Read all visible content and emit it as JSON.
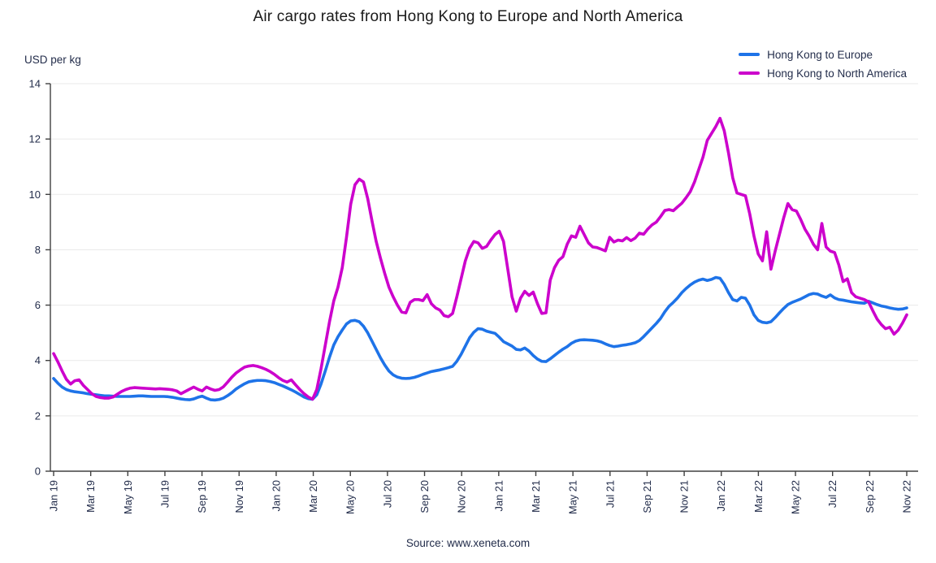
{
  "chart_data": {
    "type": "line",
    "title": "Air cargo rates from Hong Kong to Europe and North America",
    "ylabel": "USD per kg",
    "source": "Source: www.xeneta.com",
    "legend_position": "top-right",
    "grid": "horizontal",
    "ylim": [
      0,
      14
    ],
    "y_ticks": [
      0,
      2,
      4,
      6,
      8,
      10,
      12,
      14
    ],
    "x_tick_labels": [
      "Jan 19",
      "Mar 19",
      "May 19",
      "Jul 19",
      "Sep 19",
      "Nov 19",
      "Jan 20",
      "Mar 20",
      "May 20",
      "Jul 20",
      "Sep 20",
      "Nov 20",
      "Jan 21",
      "Mar 21",
      "May 21",
      "Jul 21",
      "Sep 21",
      "Nov 21",
      "Jan 22",
      "Mar 22",
      "May 22",
      "Jul 22",
      "Sep 22",
      "Nov 22"
    ],
    "x_unit": "weekly, Jan 2019 - Nov 2022",
    "axis_color": "#404040",
    "grid_color": "#eaeaea",
    "text_color": "#232d4b",
    "title_color": "#1a1a1a",
    "series": [
      {
        "name": "Hong Kong to Europe",
        "color": "#1E73E8",
        "values": [
          3.35,
          3.18,
          3.04,
          2.95,
          2.9,
          2.87,
          2.85,
          2.83,
          2.8,
          2.78,
          2.76,
          2.74,
          2.72,
          2.72,
          2.71,
          2.7,
          2.7,
          2.7,
          2.7,
          2.71,
          2.72,
          2.72,
          2.71,
          2.7,
          2.7,
          2.7,
          2.7,
          2.69,
          2.67,
          2.64,
          2.61,
          2.59,
          2.58,
          2.61,
          2.67,
          2.71,
          2.64,
          2.58,
          2.57,
          2.59,
          2.64,
          2.73,
          2.84,
          2.97,
          3.07,
          3.16,
          3.23,
          3.26,
          3.28,
          3.28,
          3.27,
          3.24,
          3.2,
          3.14,
          3.08,
          3.01,
          2.94,
          2.86,
          2.77,
          2.68,
          2.62,
          2.6,
          2.76,
          3.15,
          3.62,
          4.12,
          4.56,
          4.86,
          5.1,
          5.32,
          5.43,
          5.45,
          5.4,
          5.24,
          5.0,
          4.7,
          4.4,
          4.1,
          3.84,
          3.62,
          3.48,
          3.4,
          3.36,
          3.35,
          3.36,
          3.39,
          3.44,
          3.5,
          3.55,
          3.6,
          3.63,
          3.66,
          3.7,
          3.74,
          3.79,
          3.97,
          4.22,
          4.52,
          4.82,
          5.02,
          5.15,
          5.13,
          5.06,
          5.02,
          4.98,
          4.84,
          4.68,
          4.6,
          4.52,
          4.4,
          4.38,
          4.45,
          4.34,
          4.18,
          4.05,
          3.97,
          3.96,
          4.06,
          4.18,
          4.3,
          4.41,
          4.5,
          4.62,
          4.7,
          4.74,
          4.75,
          4.74,
          4.73,
          4.71,
          4.67,
          4.6,
          4.54,
          4.5,
          4.52,
          4.55,
          4.57,
          4.6,
          4.64,
          4.72,
          4.86,
          5.02,
          5.18,
          5.34,
          5.52,
          5.76,
          5.96,
          6.1,
          6.26,
          6.45,
          6.6,
          6.73,
          6.83,
          6.9,
          6.94,
          6.89,
          6.93,
          7.0,
          6.97,
          6.75,
          6.45,
          6.2,
          6.15,
          6.28,
          6.25,
          6.0,
          5.65,
          5.45,
          5.38,
          5.36,
          5.4,
          5.55,
          5.72,
          5.88,
          6.02,
          6.1,
          6.16,
          6.22,
          6.3,
          6.38,
          6.42,
          6.4,
          6.33,
          6.28,
          6.37,
          6.26,
          6.2,
          6.18,
          6.15,
          6.12,
          6.1,
          6.08,
          6.07,
          6.14,
          6.08,
          6.02,
          5.97,
          5.94,
          5.9,
          5.87,
          5.85,
          5.86,
          5.9
        ]
      },
      {
        "name": "Hong Kong to North America",
        "color": "#CC00CC",
        "values": [
          4.25,
          3.95,
          3.62,
          3.32,
          3.15,
          3.27,
          3.3,
          3.1,
          2.95,
          2.8,
          2.7,
          2.66,
          2.64,
          2.64,
          2.68,
          2.78,
          2.88,
          2.95,
          3.0,
          3.02,
          3.01,
          3.0,
          2.99,
          2.98,
          2.97,
          2.98,
          2.97,
          2.96,
          2.94,
          2.9,
          2.8,
          2.88,
          2.96,
          3.04,
          2.96,
          2.9,
          3.04,
          2.97,
          2.92,
          2.95,
          3.05,
          3.22,
          3.4,
          3.55,
          3.66,
          3.76,
          3.8,
          3.82,
          3.79,
          3.74,
          3.68,
          3.6,
          3.5,
          3.38,
          3.28,
          3.22,
          3.3,
          3.12,
          2.95,
          2.8,
          2.68,
          2.6,
          2.95,
          3.7,
          4.55,
          5.4,
          6.15,
          6.65,
          7.35,
          8.45,
          9.65,
          10.35,
          10.55,
          10.45,
          9.85,
          9.05,
          8.3,
          7.7,
          7.15,
          6.65,
          6.3,
          6.0,
          5.75,
          5.72,
          6.1,
          6.2,
          6.2,
          6.16,
          6.38,
          6.05,
          5.9,
          5.82,
          5.62,
          5.58,
          5.7,
          6.3,
          6.95,
          7.6,
          8.05,
          8.3,
          8.25,
          8.05,
          8.12,
          8.35,
          8.55,
          8.67,
          8.3,
          7.3,
          6.3,
          5.78,
          6.25,
          6.5,
          6.35,
          6.47,
          6.05,
          5.7,
          5.72,
          6.9,
          7.35,
          7.62,
          7.75,
          8.2,
          8.5,
          8.45,
          8.85,
          8.55,
          8.25,
          8.1,
          8.08,
          8.02,
          7.96,
          8.45,
          8.28,
          8.35,
          8.32,
          8.44,
          8.33,
          8.42,
          8.6,
          8.56,
          8.75,
          8.9,
          9.0,
          9.2,
          9.42,
          9.45,
          9.41,
          9.55,
          9.68,
          9.88,
          10.1,
          10.45,
          10.9,
          11.35,
          11.95,
          12.2,
          12.45,
          12.75,
          12.3,
          11.5,
          10.6,
          10.05,
          10.0,
          9.95,
          9.3,
          8.5,
          7.85,
          7.6,
          8.65,
          7.3,
          7.95,
          8.55,
          9.15,
          9.67,
          9.45,
          9.4,
          9.1,
          8.75,
          8.5,
          8.2,
          8.0,
          8.95,
          8.1,
          7.95,
          7.9,
          7.45,
          6.85,
          6.95,
          6.45,
          6.3,
          6.25,
          6.2,
          6.12,
          5.8,
          5.5,
          5.3,
          5.15,
          5.2,
          4.95,
          5.1,
          5.35,
          5.65
        ]
      }
    ]
  }
}
